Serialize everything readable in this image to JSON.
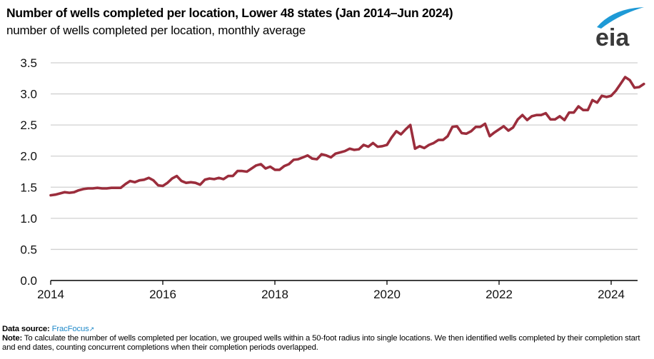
{
  "header": {
    "title": "Number of wells completed per location, Lower 48 states (Jan 2014–Jun 2024)",
    "subtitle": "number of wells completed per location, monthly average",
    "logo_text": "eia"
  },
  "footer": {
    "source_label": "Data source:",
    "source_link": "FracFocus",
    "source_link_icon": "external-link-icon",
    "note_label": "Note:",
    "note_text": "To calculate the number of wells completed per location, we grouped wells within a 50-foot radius into single locations. We then identified wells completed by their completion start and end dates, counting concurrent completions when their completion periods overlapped."
  },
  "colors": {
    "line": "#9b2d3c",
    "grid": "#d0d0d0",
    "axis": "#000000",
    "logo_arc": "#1e9ad6",
    "logo_text": "#3a3a3a",
    "link": "#1e88c8"
  },
  "chart_data": {
    "type": "line",
    "title": "Number of wells completed per location, Lower 48 states (Jan 2014–Jun 2024)",
    "ylabel": "number of wells completed per location, monthly average",
    "xlabel": "",
    "ylim": [
      0,
      3.5
    ],
    "yticks": [
      "0.0",
      "0.5",
      "1.0",
      "1.5",
      "2.0",
      "2.5",
      "3.0",
      "3.5"
    ],
    "xticks": [
      "2014",
      "2016",
      "2018",
      "2020",
      "2022",
      "2024"
    ],
    "xlim": [
      "2014-01",
      "2024-06"
    ],
    "grid": true,
    "legend": "none",
    "start": "2014-01",
    "frequency": "monthly",
    "series": [
      {
        "name": "wells completed per location",
        "values": [
          1.37,
          1.38,
          1.4,
          1.42,
          1.41,
          1.42,
          1.45,
          1.47,
          1.48,
          1.48,
          1.49,
          1.48,
          1.48,
          1.49,
          1.49,
          1.49,
          1.55,
          1.6,
          1.58,
          1.61,
          1.62,
          1.65,
          1.61,
          1.53,
          1.52,
          1.57,
          1.64,
          1.68,
          1.6,
          1.57,
          1.58,
          1.57,
          1.54,
          1.62,
          1.64,
          1.63,
          1.65,
          1.63,
          1.68,
          1.68,
          1.76,
          1.76,
          1.75,
          1.8,
          1.85,
          1.87,
          1.8,
          1.83,
          1.78,
          1.78,
          1.84,
          1.87,
          1.94,
          1.95,
          1.98,
          2.01,
          1.96,
          1.95,
          2.03,
          2.01,
          1.98,
          2.04,
          2.06,
          2.08,
          2.12,
          2.1,
          2.11,
          2.18,
          2.15,
          2.21,
          2.15,
          2.16,
          2.18,
          2.3,
          2.4,
          2.35,
          2.43,
          2.5,
          2.12,
          2.16,
          2.13,
          2.18,
          2.21,
          2.26,
          2.26,
          2.32,
          2.47,
          2.48,
          2.37,
          2.36,
          2.4,
          2.47,
          2.47,
          2.52,
          2.32,
          2.38,
          2.43,
          2.48,
          2.41,
          2.46,
          2.59,
          2.66,
          2.58,
          2.64,
          2.66,
          2.66,
          2.69,
          2.59,
          2.59,
          2.64,
          2.58,
          2.7,
          2.7,
          2.8,
          2.74,
          2.74,
          2.9,
          2.86,
          2.97,
          2.95,
          2.97,
          3.05,
          3.16,
          3.27,
          3.22,
          3.1,
          3.11,
          3.16
        ]
      }
    ],
    "source": "FracFocus"
  }
}
